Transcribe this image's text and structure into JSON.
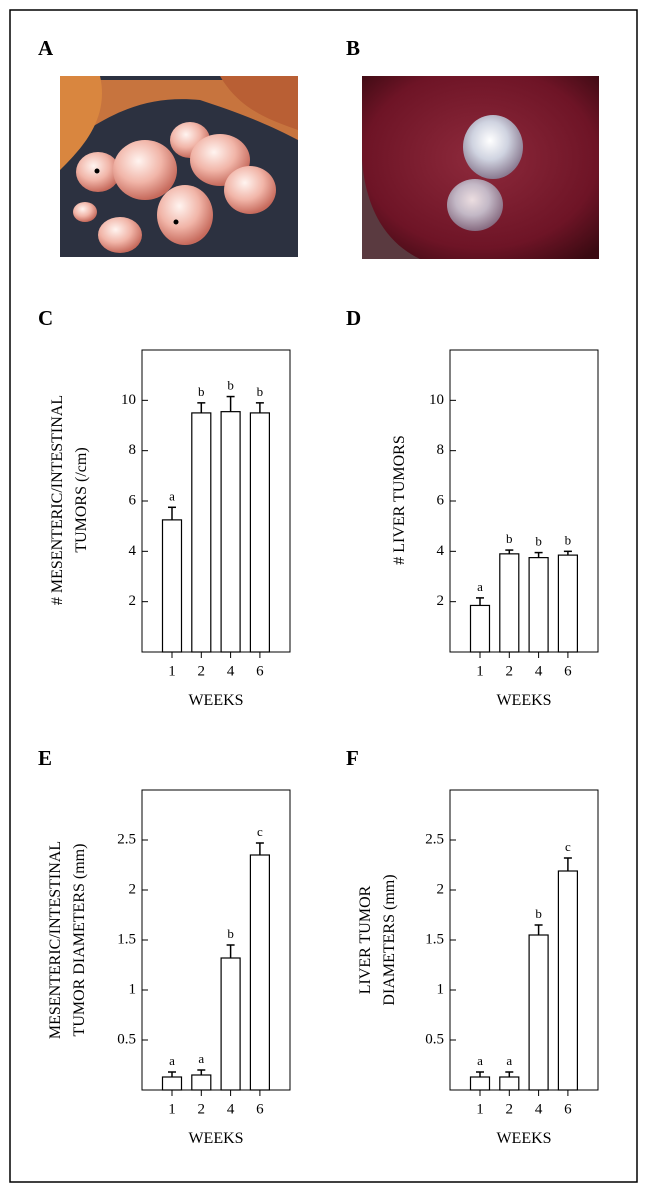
{
  "panels": [
    "A",
    "B"
  ],
  "chart_data": [
    {
      "type": "bar",
      "panel": "C",
      "ylabel": [
        "# MESENTERIC/INTESTINAL",
        "TUMORS (/cm)"
      ],
      "xlabel": "WEEKS",
      "categories": [
        "1",
        "2",
        "4",
        "6"
      ],
      "values": [
        5.25,
        9.5,
        9.55,
        9.5
      ],
      "errors": [
        0.5,
        0.4,
        0.6,
        0.4
      ],
      "letters": [
        "a",
        "b",
        "b",
        "b"
      ],
      "ylim": [
        0,
        12
      ],
      "yticks": [
        2,
        4,
        6,
        8,
        10
      ]
    },
    {
      "type": "bar",
      "panel": "D",
      "ylabel": [
        "# LIVER TUMORS"
      ],
      "xlabel": "WEEKS",
      "categories": [
        "1",
        "2",
        "4",
        "6"
      ],
      "values": [
        1.85,
        3.9,
        3.75,
        3.85
      ],
      "errors": [
        0.3,
        0.15,
        0.2,
        0.15
      ],
      "letters": [
        "a",
        "b",
        "b",
        "b"
      ],
      "ylim": [
        0,
        12
      ],
      "yticks": [
        2,
        4,
        6,
        8,
        10
      ]
    },
    {
      "type": "bar",
      "panel": "E",
      "ylabel": [
        "MESENTERIC/INTESTINAL",
        "TUMOR DIAMETERS (mm)"
      ],
      "xlabel": "WEEKS",
      "categories": [
        "1",
        "2",
        "4",
        "6"
      ],
      "values": [
        0.13,
        0.15,
        1.32,
        2.35
      ],
      "errors": [
        0.05,
        0.05,
        0.13,
        0.12
      ],
      "letters": [
        "a",
        "a",
        "b",
        "c"
      ],
      "ylim": [
        0,
        3
      ],
      "yticks": [
        0.5,
        1,
        1.5,
        2,
        2.5
      ]
    },
    {
      "type": "bar",
      "panel": "F",
      "ylabel": [
        "LIVER TUMOR",
        "DIAMETERS (mm)"
      ],
      "xlabel": "WEEKS",
      "categories": [
        "1",
        "2",
        "4",
        "6"
      ],
      "values": [
        0.13,
        0.13,
        1.55,
        2.19
      ],
      "errors": [
        0.05,
        0.05,
        0.1,
        0.13
      ],
      "letters": [
        "a",
        "a",
        "b",
        "c"
      ],
      "ylim": [
        0,
        3
      ],
      "yticks": [
        0.5,
        1,
        1.5,
        2,
        2.5
      ]
    }
  ]
}
